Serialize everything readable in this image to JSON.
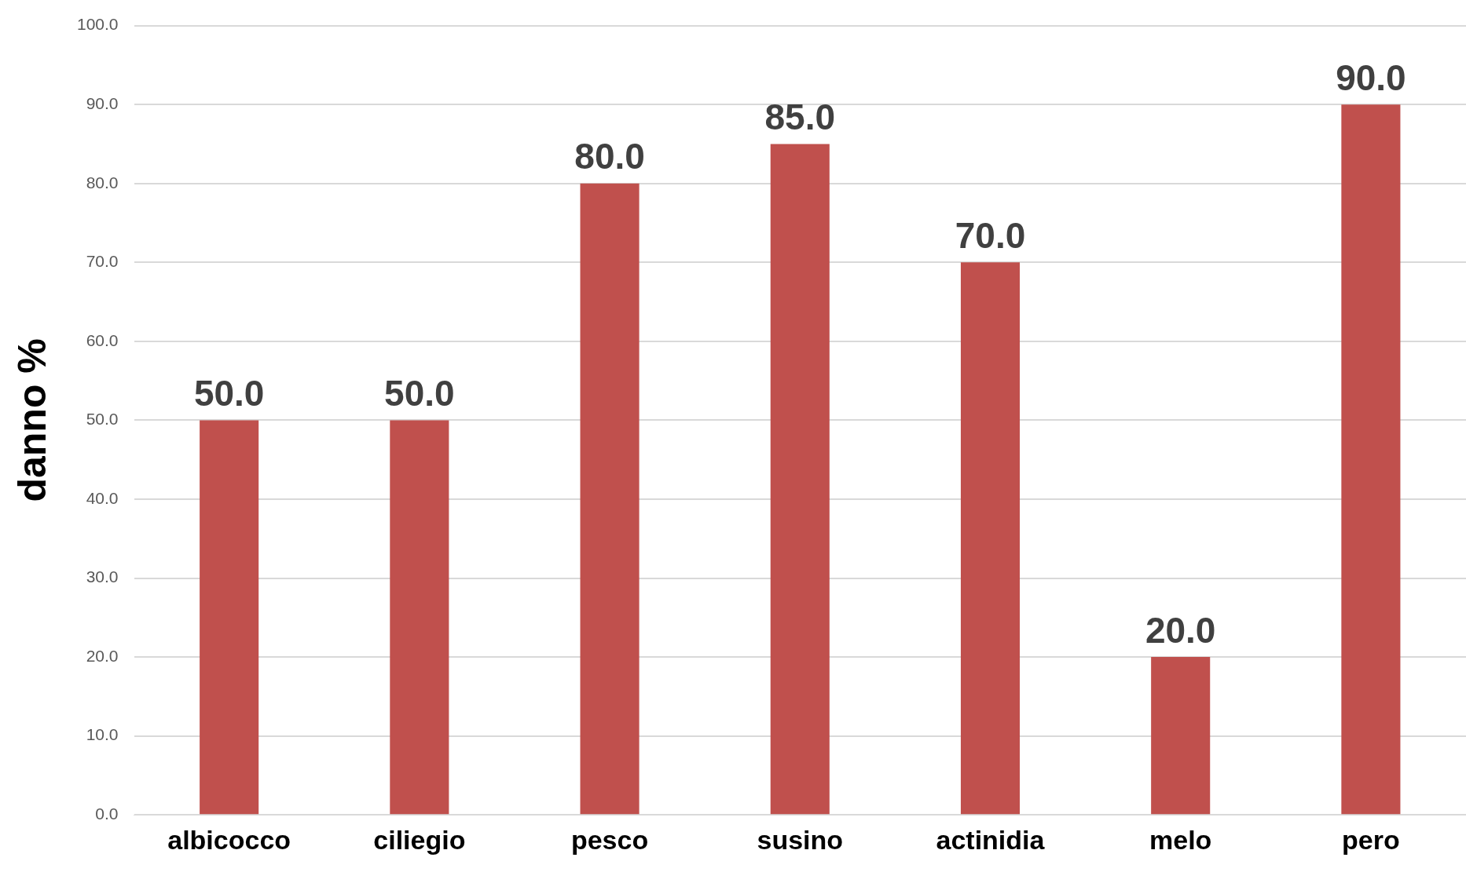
{
  "chart_data": {
    "type": "bar",
    "ylabel": "danno %",
    "categories": [
      "albicocco",
      "ciliegio",
      "pesco",
      "susino",
      "actinidia",
      "melo",
      "pero"
    ],
    "values": [
      50.0,
      50.0,
      80.0,
      85.0,
      70.0,
      20.0,
      90.0
    ],
    "value_labels": [
      "50.0",
      "50.0",
      "80.0",
      "85.0",
      "70.0",
      "20.0",
      "90.0"
    ],
    "color": "#c0504d",
    "ylim": [
      0,
      100
    ],
    "yticks": [
      {
        "value": 0,
        "label": "0.0"
      },
      {
        "value": 10,
        "label": "10.0"
      },
      {
        "value": 20,
        "label": "20.0"
      },
      {
        "value": 30,
        "label": "30.0"
      },
      {
        "value": 40,
        "label": "40.0"
      },
      {
        "value": 50,
        "label": "50.0"
      },
      {
        "value": 60,
        "label": "60.0"
      },
      {
        "value": 70,
        "label": "70.0"
      },
      {
        "value": 80,
        "label": "80.0"
      },
      {
        "value": 90,
        "label": "90.0"
      },
      {
        "value": 100,
        "label": "100.0"
      }
    ],
    "grid": "y",
    "legend": false
  }
}
